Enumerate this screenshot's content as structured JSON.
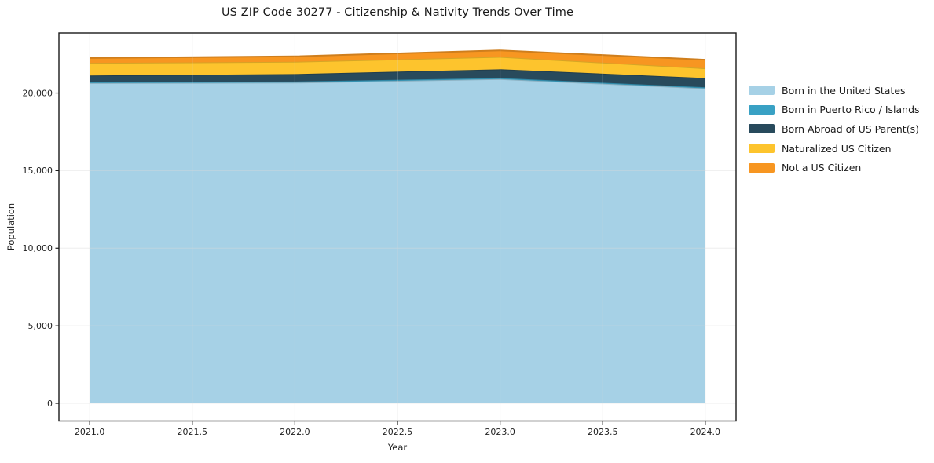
{
  "page": {
    "background": "#ffffff"
  },
  "chart_data": {
    "type": "area",
    "stacked": true,
    "title": "US ZIP Code 30277 - Citizenship & Nativity Trends Over Time",
    "xlabel": "Year",
    "ylabel": "Population",
    "x": [
      2021,
      2022,
      2023,
      2024
    ],
    "series": [
      {
        "name": "Born in the United States",
        "color": "#a6d1e6",
        "values": [
          20640,
          20670,
          20900,
          20300
        ]
      },
      {
        "name": "Born in Puerto Rico / Islands",
        "color": "#39a1c4",
        "values": [
          70,
          70,
          70,
          70
        ]
      },
      {
        "name": "Born Abroad of US Parent(s)",
        "color": "#284a5c",
        "values": [
          420,
          480,
          560,
          600
        ]
      },
      {
        "name": "Naturalized US Citizen",
        "color": "#fdc42d",
        "values": [
          810,
          790,
          800,
          620
        ]
      },
      {
        "name": "Not a US Citizen",
        "color": "#f79621",
        "values": [
          320,
          355,
          420,
          555
        ]
      }
    ],
    "xlim": [
      2020.85,
      2024.15
    ],
    "ylim": [
      -1137,
      23871
    ],
    "xticks": {
      "values": [
        2021.0,
        2021.5,
        2022.0,
        2022.5,
        2023.0,
        2023.5,
        2024.0
      ],
      "labels": [
        "2021.0",
        "2021.5",
        "2022.0",
        "2022.5",
        "2023.0",
        "2023.5",
        "2024.0"
      ]
    },
    "yticks": {
      "values": [
        0,
        5000,
        10000,
        15000,
        20000
      ],
      "labels": [
        "0",
        "5,000",
        "10,000",
        "15,000",
        "20,000"
      ]
    },
    "grid": true,
    "grid_color": "#d9d9d9",
    "axis_color": "#1a1a1a",
    "tick_label_color": "#1f1f1f",
    "legend_position": "right"
  }
}
